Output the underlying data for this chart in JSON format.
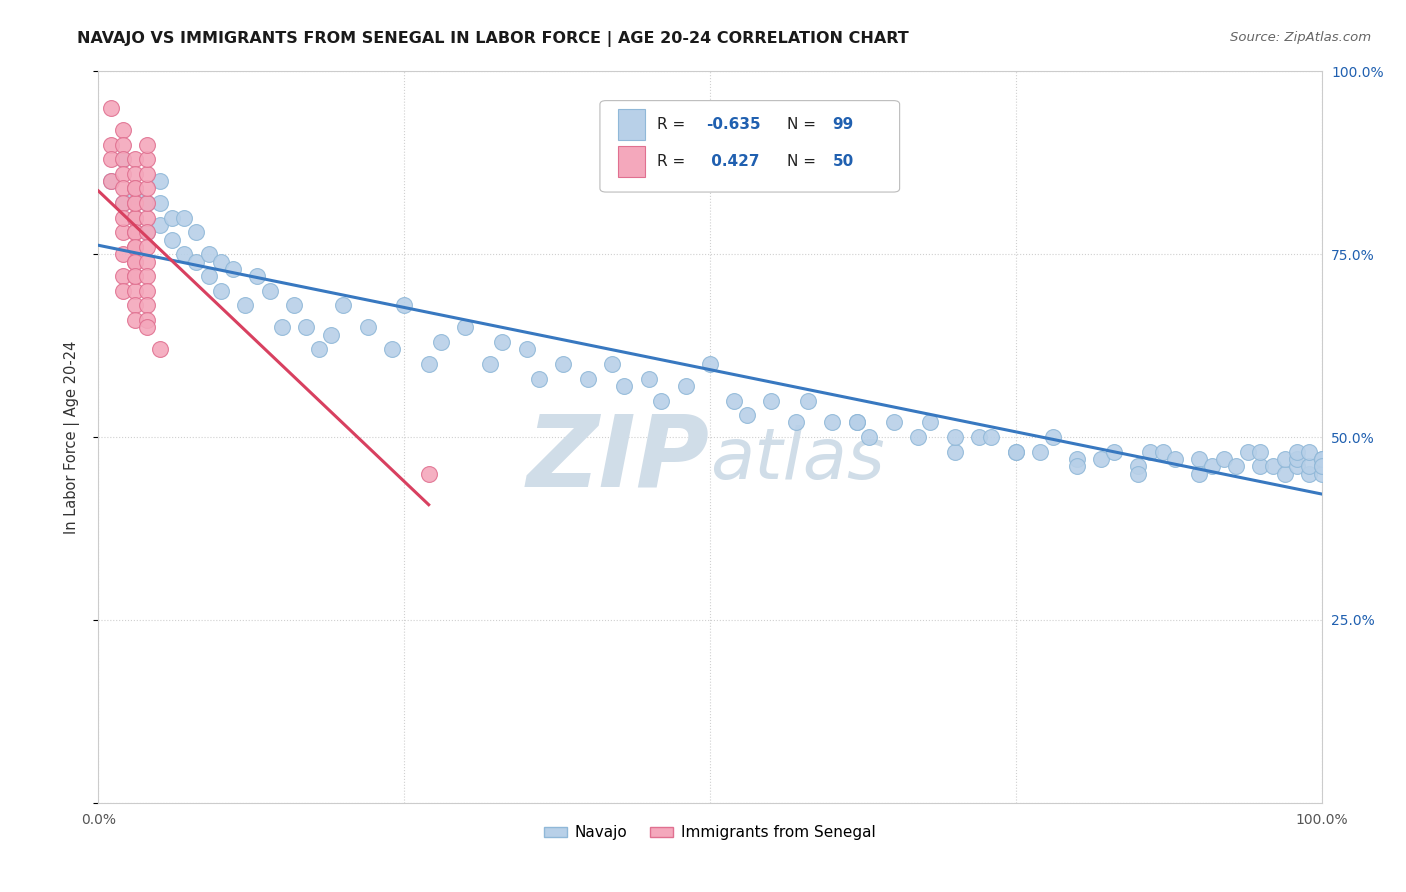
{
  "title": "NAVAJO VS IMMIGRANTS FROM SENEGAL IN LABOR FORCE | AGE 20-24 CORRELATION CHART",
  "source_text": "Source: ZipAtlas.com",
  "ylabel": "In Labor Force | Age 20-24",
  "x_min": 0.0,
  "x_max": 1.0,
  "y_min": 0.0,
  "y_max": 1.0,
  "x_ticks": [
    0.0,
    0.25,
    0.5,
    0.75,
    1.0
  ],
  "y_ticks": [
    0.0,
    0.25,
    0.5,
    0.75,
    1.0
  ],
  "x_tick_labels": [
    "0.0%",
    "",
    "",
    "",
    "100.0%"
  ],
  "y_tick_labels_right": [
    "",
    "25.0%",
    "50.0%",
    "75.0%",
    "100.0%"
  ],
  "navajo_color": "#b8d0e8",
  "navajo_edge_color": "#90b8d8",
  "senegal_color": "#f4a8bc",
  "senegal_edge_color": "#e07090",
  "trend_navajo_color": "#3878c0",
  "trend_senegal_color": "#d84060",
  "watermark_color": "#d0dde8",
  "legend_R_color": "#2060b0",
  "background_color": "#ffffff",
  "grid_color": "#d0d0d0",
  "navajo_x": [
    0.01,
    0.02,
    0.02,
    0.03,
    0.03,
    0.04,
    0.04,
    0.05,
    0.05,
    0.05,
    0.06,
    0.06,
    0.07,
    0.07,
    0.08,
    0.08,
    0.09,
    0.09,
    0.1,
    0.1,
    0.11,
    0.12,
    0.13,
    0.14,
    0.15,
    0.16,
    0.17,
    0.18,
    0.19,
    0.2,
    0.22,
    0.24,
    0.25,
    0.27,
    0.28,
    0.3,
    0.32,
    0.33,
    0.35,
    0.36,
    0.38,
    0.4,
    0.42,
    0.43,
    0.45,
    0.46,
    0.48,
    0.5,
    0.52,
    0.53,
    0.55,
    0.57,
    0.58,
    0.6,
    0.62,
    0.63,
    0.65,
    0.67,
    0.68,
    0.7,
    0.72,
    0.73,
    0.75,
    0.77,
    0.78,
    0.8,
    0.82,
    0.83,
    0.85,
    0.86,
    0.87,
    0.88,
    0.9,
    0.91,
    0.92,
    0.93,
    0.94,
    0.95,
    0.95,
    0.96,
    0.97,
    0.97,
    0.98,
    0.98,
    0.98,
    0.99,
    0.99,
    0.99,
    1.0,
    1.0,
    1.0,
    1.0,
    1.0,
    0.62,
    0.7,
    0.75,
    0.8,
    0.85,
    0.9
  ],
  "navajo_y": [
    0.85,
    0.88,
    0.82,
    0.8,
    0.83,
    0.78,
    0.82,
    0.79,
    0.82,
    0.85,
    0.77,
    0.8,
    0.75,
    0.8,
    0.78,
    0.74,
    0.72,
    0.75,
    0.7,
    0.74,
    0.73,
    0.68,
    0.72,
    0.7,
    0.65,
    0.68,
    0.65,
    0.62,
    0.64,
    0.68,
    0.65,
    0.62,
    0.68,
    0.6,
    0.63,
    0.65,
    0.6,
    0.63,
    0.62,
    0.58,
    0.6,
    0.58,
    0.6,
    0.57,
    0.58,
    0.55,
    0.57,
    0.6,
    0.55,
    0.53,
    0.55,
    0.52,
    0.55,
    0.52,
    0.52,
    0.5,
    0.52,
    0.5,
    0.52,
    0.48,
    0.5,
    0.5,
    0.48,
    0.48,
    0.5,
    0.47,
    0.47,
    0.48,
    0.46,
    0.48,
    0.48,
    0.47,
    0.47,
    0.46,
    0.47,
    0.46,
    0.48,
    0.46,
    0.48,
    0.46,
    0.45,
    0.47,
    0.46,
    0.47,
    0.48,
    0.45,
    0.46,
    0.48,
    0.46,
    0.47,
    0.45,
    0.47,
    0.46,
    0.52,
    0.5,
    0.48,
    0.46,
    0.45,
    0.45
  ],
  "senegal_x": [
    0.01,
    0.01,
    0.01,
    0.01,
    0.02,
    0.02,
    0.02,
    0.02,
    0.02,
    0.02,
    0.02,
    0.02,
    0.02,
    0.02,
    0.02,
    0.03,
    0.03,
    0.03,
    0.03,
    0.03,
    0.03,
    0.03,
    0.03,
    0.03,
    0.03,
    0.03,
    0.03,
    0.03,
    0.03,
    0.03,
    0.03,
    0.03,
    0.03,
    0.03,
    0.04,
    0.04,
    0.04,
    0.04,
    0.04,
    0.04,
    0.04,
    0.04,
    0.04,
    0.04,
    0.04,
    0.04,
    0.04,
    0.04,
    0.05,
    0.27
  ],
  "senegal_y": [
    0.95,
    0.9,
    0.88,
    0.85,
    0.92,
    0.9,
    0.88,
    0.86,
    0.84,
    0.82,
    0.78,
    0.75,
    0.72,
    0.8,
    0.7,
    0.88,
    0.86,
    0.84,
    0.82,
    0.8,
    0.78,
    0.76,
    0.74,
    0.72,
    0.7,
    0.68,
    0.66,
    0.8,
    0.78,
    0.76,
    0.74,
    0.72,
    0.82,
    0.84,
    0.8,
    0.78,
    0.76,
    0.74,
    0.72,
    0.7,
    0.68,
    0.66,
    0.82,
    0.84,
    0.86,
    0.88,
    0.9,
    0.65,
    0.62,
    0.45
  ]
}
